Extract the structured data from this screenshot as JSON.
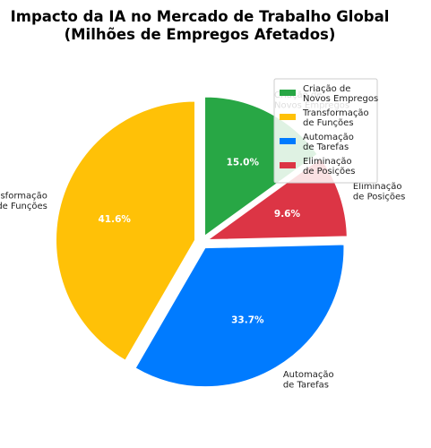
{
  "chart_data": {
    "type": "pie",
    "title": [
      "Impacto da IA no Mercado de Trabalho Global",
      "(Milhões de Empregos Afetados)"
    ],
    "start_angle_deg": 90,
    "direction": "clockwise",
    "legend_position": "top-right",
    "slices": [
      {
        "label": [
          "Criação de",
          "Novos Empregos"
        ],
        "value": 15.0,
        "pct_label": "15.0%",
        "color": "#28a745",
        "explode": 0.05
      },
      {
        "label": [
          "Eliminação",
          "de Posições"
        ],
        "value": 9.6,
        "pct_label": "9.6%",
        "color": "#dc3545",
        "explode": 0.05
      },
      {
        "label": [
          "Automação",
          "de Tarefas"
        ],
        "value": 33.7,
        "pct_label": "33.7%",
        "color": "#007bff",
        "explode": 0.05
      },
      {
        "label": [
          "Transformação",
          "de Funções"
        ],
        "value": 41.6,
        "pct_label": "41.6%",
        "color": "#ffc107",
        "explode": 0.05
      }
    ],
    "legend": [
      {
        "text": [
          "Criação de",
          "Novos Empregos"
        ],
        "color": "#28a745"
      },
      {
        "text": [
          "Transformação",
          "de Funções"
        ],
        "color": "#ffc107"
      },
      {
        "text": [
          "Automação",
          "de Tarefas"
        ],
        "color": "#007bff"
      },
      {
        "text": [
          "Eliminação",
          "de Posições"
        ],
        "color": "#dc3545"
      }
    ]
  }
}
